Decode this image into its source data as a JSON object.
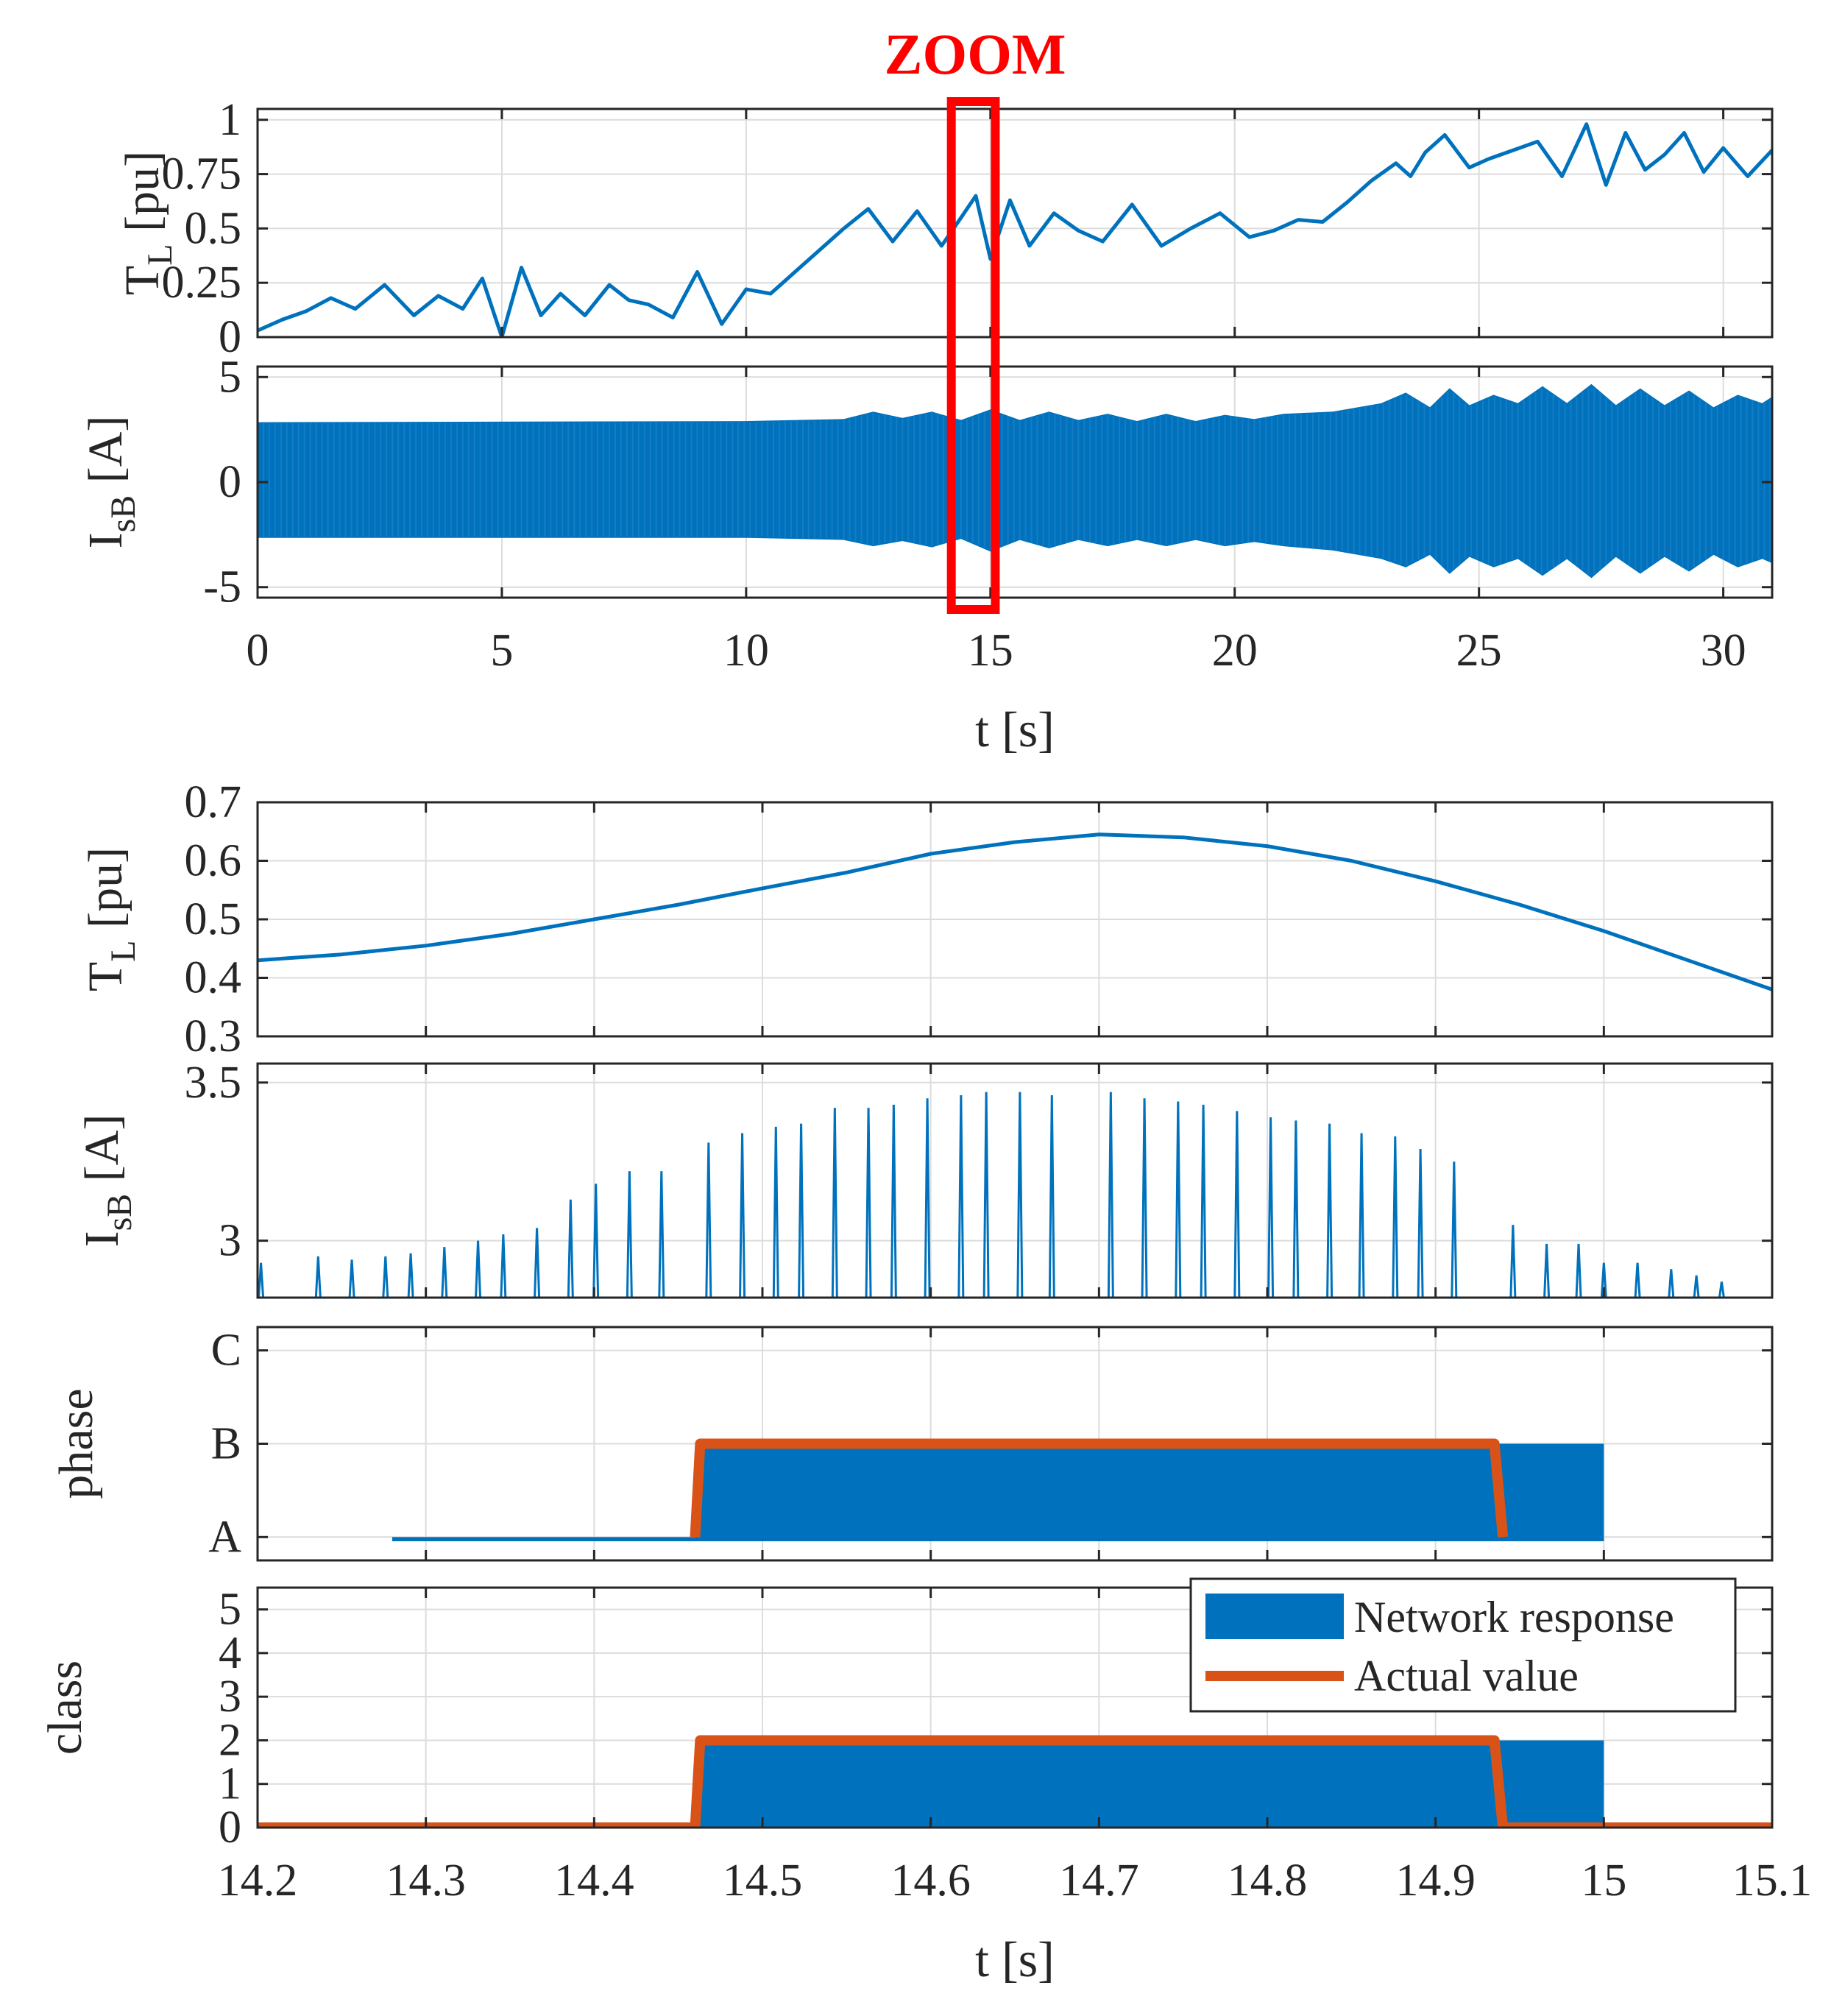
{
  "colors": {
    "network": "#0072bd",
    "actual": "#d95319",
    "zoom": "#ff0000",
    "axis": "#262626"
  },
  "zoom_label": "ZOOM",
  "chart_data": [
    {
      "id": "tl-full",
      "type": "line",
      "ylabel": "T",
      "ylabel_sub": "L",
      "ylabel_unit": " [pu]",
      "xlim": [
        0,
        31
      ],
      "ylim": [
        0,
        1.05
      ],
      "xticks": [
        0,
        5,
        10,
        15,
        20,
        25,
        30
      ],
      "yticks": [
        0,
        0.25,
        0.5,
        0.75,
        1
      ],
      "ytick_labels": [
        "0",
        "0.25",
        "0.5",
        "0.75",
        "1"
      ],
      "zoom_window": [
        14.2,
        15.1
      ],
      "series": [
        {
          "name": "T_L",
          "x": [
            0,
            0.5,
            1,
            1.5,
            2,
            2.6,
            3.2,
            3.7,
            4.2,
            4.6,
            5.0,
            5.4,
            5.8,
            6.2,
            6.7,
            7.2,
            7.6,
            8.0,
            8.5,
            9.0,
            9.5,
            10.0,
            10.5,
            11.0,
            11.5,
            12.0,
            12.5,
            13.0,
            13.5,
            14.0,
            14.4,
            14.7,
            15.0,
            15.4,
            15.8,
            16.3,
            16.8,
            17.3,
            17.9,
            18.5,
            19.1,
            19.7,
            20.3,
            20.8,
            21.3,
            21.8,
            22.3,
            22.8,
            23.3,
            23.6,
            23.9,
            24.3,
            24.8,
            25.2,
            25.7,
            26.2,
            26.7,
            27.2,
            27.6,
            28.0,
            28.4,
            28.8,
            29.2,
            29.6,
            30.0,
            30.5,
            31.0
          ],
          "y": [
            0.03,
            0.08,
            0.12,
            0.18,
            0.13,
            0.24,
            0.1,
            0.19,
            0.13,
            0.27,
            0.0,
            0.32,
            0.1,
            0.2,
            0.1,
            0.24,
            0.17,
            0.15,
            0.09,
            0.3,
            0.06,
            0.22,
            0.2,
            0.3,
            0.4,
            0.5,
            0.59,
            0.44,
            0.58,
            0.42,
            0.55,
            0.65,
            0.36,
            0.63,
            0.42,
            0.57,
            0.49,
            0.44,
            0.61,
            0.42,
            0.5,
            0.57,
            0.46,
            0.49,
            0.54,
            0.53,
            0.62,
            0.72,
            0.8,
            0.74,
            0.85,
            0.93,
            0.78,
            0.82,
            0.86,
            0.9,
            0.74,
            0.98,
            0.7,
            0.94,
            0.77,
            0.84,
            0.94,
            0.76,
            0.87,
            0.74,
            0.86
          ]
        }
      ]
    },
    {
      "id": "isb-full",
      "type": "area",
      "ylabel": "I",
      "ylabel_sub": "sB",
      "ylabel_unit": " [A]",
      "xlim": [
        0,
        31
      ],
      "ylim": [
        -5.5,
        5.5
      ],
      "xticks": [
        0,
        5,
        10,
        15,
        20,
        25,
        30
      ],
      "xtick_labels": [
        "0",
        "5",
        "10",
        "15",
        "20",
        "25",
        "30"
      ],
      "yticks": [
        -5,
        0,
        5
      ],
      "ytick_labels": [
        "-5",
        "0",
        "5"
      ],
      "xlabel": "t [s]",
      "envelope": {
        "x": [
          0,
          10,
          12,
          12.6,
          13.2,
          13.8,
          14.4,
          15.0,
          15.6,
          16.2,
          16.8,
          17.4,
          18.0,
          18.6,
          19.2,
          19.8,
          20.4,
          21.0,
          22.0,
          23.0,
          23.5,
          24.0,
          24.4,
          24.8,
          25.3,
          25.8,
          26.3,
          26.8,
          27.3,
          27.8,
          28.3,
          28.8,
          29.3,
          29.8,
          30.3,
          30.8,
          31.0
        ],
        "upper": [
          2.8,
          2.85,
          2.95,
          3.3,
          3.0,
          3.3,
          2.9,
          3.4,
          2.9,
          3.3,
          2.9,
          3.2,
          2.85,
          3.2,
          2.85,
          3.15,
          2.95,
          3.2,
          3.3,
          3.7,
          4.2,
          3.5,
          4.4,
          3.6,
          4.1,
          3.7,
          4.5,
          3.7,
          4.6,
          3.6,
          4.4,
          3.6,
          4.3,
          3.5,
          4.1,
          3.7,
          4.0
        ],
        "lower": [
          -2.6,
          -2.6,
          -2.7,
          -3.0,
          -2.75,
          -3.05,
          -2.65,
          -3.25,
          -2.7,
          -3.1,
          -2.7,
          -3.0,
          -2.7,
          -3.0,
          -2.7,
          -3.0,
          -2.8,
          -3.0,
          -3.2,
          -3.6,
          -4.0,
          -3.4,
          -4.3,
          -3.5,
          -4.0,
          -3.6,
          -4.4,
          -3.6,
          -4.5,
          -3.5,
          -4.3,
          -3.5,
          -4.2,
          -3.4,
          -4.0,
          -3.6,
          -3.8
        ]
      }
    },
    {
      "id": "tl-zoom",
      "type": "line",
      "ylabel": "T",
      "ylabel_sub": "L",
      "ylabel_unit": " [pu]",
      "xlim": [
        14.2,
        15.1
      ],
      "ylim": [
        0.3,
        0.7
      ],
      "xticks": [
        14.2,
        14.3,
        14.4,
        14.5,
        14.6,
        14.7,
        14.8,
        14.9,
        15.0
      ],
      "yticks": [
        0.3,
        0.4,
        0.5,
        0.6,
        0.7
      ],
      "ytick_labels": [
        "0.3",
        "0.4",
        "0.5",
        "0.6",
        "0.7"
      ],
      "series": [
        {
          "name": "T_L",
          "x": [
            14.2,
            14.25,
            14.3,
            14.35,
            14.4,
            14.45,
            14.5,
            14.55,
            14.6,
            14.65,
            14.7,
            14.75,
            14.8,
            14.85,
            14.9,
            14.95,
            15.0,
            15.05,
            15.1
          ],
          "y": [
            0.43,
            0.44,
            0.455,
            0.475,
            0.5,
            0.525,
            0.553,
            0.58,
            0.612,
            0.632,
            0.645,
            0.64,
            0.625,
            0.6,
            0.565,
            0.525,
            0.48,
            0.43,
            0.38
          ]
        }
      ]
    },
    {
      "id": "isb-zoom",
      "type": "bar",
      "ylabel": "I",
      "ylabel_sub": "sB",
      "ylabel_unit": " [A]",
      "xlim": [
        14.2,
        15.1
      ],
      "ylim": [
        2.82,
        3.56
      ],
      "xticks": [
        14.2,
        14.3,
        14.4,
        14.5,
        14.6,
        14.7,
        14.8,
        14.9,
        15.0
      ],
      "yticks": [
        3.0,
        3.5
      ],
      "ytick_labels": [
        "3",
        "3.5"
      ],
      "peaks": {
        "x": [
          14.202,
          14.236,
          14.256,
          14.276,
          14.291,
          14.311,
          14.331,
          14.346,
          14.366,
          14.386,
          14.401,
          14.421,
          14.44,
          14.468,
          14.488,
          14.508,
          14.523,
          14.543,
          14.563,
          14.578,
          14.598,
          14.618,
          14.633,
          14.653,
          14.672,
          14.707,
          14.727,
          14.747,
          14.762,
          14.782,
          14.802,
          14.817,
          14.837,
          14.856,
          14.876,
          14.891,
          14.911,
          14.946,
          14.966,
          14.985,
          15.0,
          15.02,
          15.04,
          15.055,
          15.07
        ],
        "y": [
          2.93,
          2.95,
          2.94,
          2.95,
          2.96,
          2.98,
          3.0,
          3.02,
          3.04,
          3.13,
          3.18,
          3.22,
          3.22,
          3.31,
          3.34,
          3.36,
          3.37,
          3.42,
          3.42,
          3.43,
          3.45,
          3.46,
          3.47,
          3.47,
          3.46,
          3.47,
          3.45,
          3.44,
          3.43,
          3.41,
          3.39,
          3.38,
          3.37,
          3.34,
          3.33,
          3.29,
          3.25,
          3.05,
          2.99,
          2.99,
          2.93,
          2.93,
          2.91,
          2.89,
          2.87
        ]
      }
    },
    {
      "id": "phase-zoom",
      "type": "area",
      "ylabel": "phase",
      "xlim": [
        14.2,
        15.1
      ],
      "ylim": [
        0.75,
        3.25
      ],
      "xticks": [
        14.2,
        14.3,
        14.4,
        14.5,
        14.6,
        14.7,
        14.8,
        14.9,
        15.0
      ],
      "yticks": [
        1,
        2,
        3
      ],
      "ytick_labels": [
        "A",
        "B",
        "C"
      ],
      "series": [
        {
          "name": "Network response",
          "x": [
            14.28,
            14.46,
            14.46,
            15.0
          ],
          "y": [
            1,
            1,
            2,
            2
          ]
        },
        {
          "name": "Actual value",
          "x": [
            14.46,
            14.463,
            14.935,
            14.94
          ],
          "y": [
            1,
            2,
            2,
            1
          ]
        }
      ]
    },
    {
      "id": "class-zoom",
      "type": "area",
      "ylabel": "class",
      "xlim": [
        14.2,
        15.1
      ],
      "ylim": [
        0,
        5.5
      ],
      "xticks": [
        14.2,
        14.3,
        14.4,
        14.5,
        14.6,
        14.7,
        14.8,
        14.9,
        15.0,
        15.1
      ],
      "xtick_labels": [
        "14.2",
        "14.3",
        "14.4",
        "14.5",
        "14.6",
        "14.7",
        "14.8",
        "14.9",
        "15",
        "15.1"
      ],
      "yticks": [
        0,
        1,
        2,
        3,
        4,
        5
      ],
      "ytick_labels": [
        "0",
        "1",
        "2",
        "3",
        "4",
        "5"
      ],
      "xlabel": "t [s]",
      "legend": [
        "Network response",
        "Actual value"
      ],
      "series": [
        {
          "name": "Network response",
          "x": [
            14.2,
            14.46,
            14.46,
            15.0,
            15.0,
            15.1
          ],
          "y": [
            0,
            0,
            2,
            2,
            0,
            0
          ]
        },
        {
          "name": "Actual value",
          "x": [
            14.2,
            14.46,
            14.463,
            14.935,
            14.94,
            15.1
          ],
          "y": [
            0,
            0,
            2,
            2,
            0,
            0
          ]
        }
      ]
    }
  ]
}
